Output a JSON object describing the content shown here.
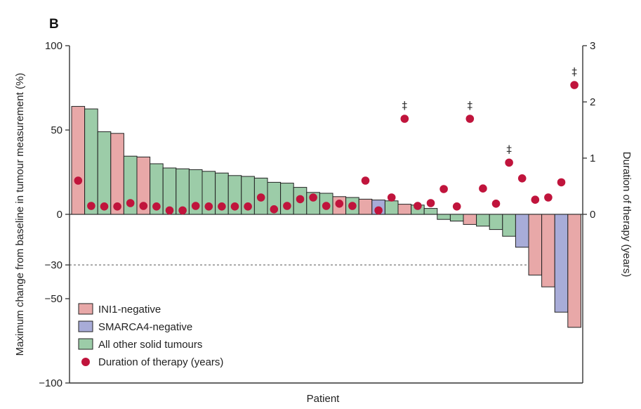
{
  "chart_data": {
    "type": "bar",
    "panel_label": "B",
    "xlabel": "Patient",
    "ylabel": "Maximum change from baseline in tumour measurement (%)",
    "ylabel_right": "Duration of therapy (years)",
    "ylim": [
      -100,
      100
    ],
    "yticks": [
      "100",
      "50",
      "0",
      "−30",
      "−50",
      "−100"
    ],
    "ytick_values": [
      100,
      50,
      0,
      -30,
      -50,
      -100
    ],
    "ylim_right": [
      0,
      3
    ],
    "yticks_right": [
      "3",
      "2",
      "1",
      "0"
    ],
    "ytick_values_right": [
      3,
      2,
      1,
      0
    ],
    "reference_line": -30,
    "colors": {
      "INI1-negative": "#e8a8a8",
      "SMARCA4-negative": "#a8acd8",
      "All other solid tumours": "#9ccca8",
      "dot": "#c0143c"
    },
    "categories": [
      "INI1-negative",
      "SMARCA4-negative",
      "All other solid tumours"
    ],
    "bars": [
      {
        "value": 64,
        "group": "INI1-negative"
      },
      {
        "value": 62.5,
        "group": "All other solid tumours"
      },
      {
        "value": 49,
        "group": "All other solid tumours"
      },
      {
        "value": 48,
        "group": "INI1-negative"
      },
      {
        "value": 34.5,
        "group": "All other solid tumours"
      },
      {
        "value": 34,
        "group": "INI1-negative"
      },
      {
        "value": 30,
        "group": "All other solid tumours"
      },
      {
        "value": 27.5,
        "group": "All other solid tumours"
      },
      {
        "value": 27,
        "group": "All other solid tumours"
      },
      {
        "value": 26.5,
        "group": "All other solid tumours"
      },
      {
        "value": 25.5,
        "group": "All other solid tumours"
      },
      {
        "value": 24.5,
        "group": "All other solid tumours"
      },
      {
        "value": 23,
        "group": "All other solid tumours"
      },
      {
        "value": 22.5,
        "group": "All other solid tumours"
      },
      {
        "value": 21.5,
        "group": "All other solid tumours"
      },
      {
        "value": 19,
        "group": "All other solid tumours"
      },
      {
        "value": 18.5,
        "group": "All other solid tumours"
      },
      {
        "value": 16,
        "group": "All other solid tumours"
      },
      {
        "value": 13,
        "group": "All other solid tumours"
      },
      {
        "value": 12.5,
        "group": "All other solid tumours"
      },
      {
        "value": 10.5,
        "group": "INI1-negative"
      },
      {
        "value": 10,
        "group": "All other solid tumours"
      },
      {
        "value": 9,
        "group": "INI1-negative"
      },
      {
        "value": 8.5,
        "group": "SMARCA4-negative"
      },
      {
        "value": 8,
        "group": "All other solid tumours"
      },
      {
        "value": 6,
        "group": "INI1-negative"
      },
      {
        "value": 5.5,
        "group": "All other solid tumours"
      },
      {
        "value": 3.5,
        "group": "All other solid tumours"
      },
      {
        "value": -3,
        "group": "All other solid tumours"
      },
      {
        "value": -4,
        "group": "All other solid tumours"
      },
      {
        "value": -6,
        "group": "INI1-negative"
      },
      {
        "value": -7,
        "group": "All other solid tumours"
      },
      {
        "value": -9,
        "group": "All other solid tumours"
      },
      {
        "value": -13,
        "group": "All other solid tumours"
      },
      {
        "value": -19.5,
        "group": "SMARCA4-negative"
      },
      {
        "value": -36,
        "group": "INI1-negative"
      },
      {
        "value": -43,
        "group": "INI1-negative"
      },
      {
        "value": -58,
        "group": "SMARCA4-negative"
      },
      {
        "value": -67,
        "group": "INI1-negative"
      }
    ],
    "duration_years": [
      0.6,
      0.15,
      0.14,
      0.14,
      0.2,
      0.15,
      0.14,
      0.07,
      0.07,
      0.15,
      0.14,
      0.14,
      0.14,
      0.14,
      0.3,
      0.09,
      0.15,
      0.27,
      0.3,
      0.15,
      0.19,
      0.15,
      0.6,
      0.07,
      0.3,
      1.7,
      0.15,
      0.2,
      0.45,
      0.14,
      1.7,
      0.46,
      0.19,
      0.92,
      0.64,
      0.26,
      0.3,
      0.57,
      2.3
    ],
    "dagger_marker": "‡",
    "dagger_indices": [
      25,
      30,
      33,
      38
    ],
    "legend": {
      "position": "bottom-left",
      "items": [
        {
          "label": "INI1-negative",
          "kind": "box",
          "group": "INI1-negative"
        },
        {
          "label": "SMARCA4-negative",
          "kind": "box",
          "group": "SMARCA4-negative"
        },
        {
          "label": "All other solid tumours",
          "kind": "box",
          "group": "All other solid tumours"
        },
        {
          "label": "Duration of therapy (years)",
          "kind": "dot"
        }
      ]
    }
  }
}
